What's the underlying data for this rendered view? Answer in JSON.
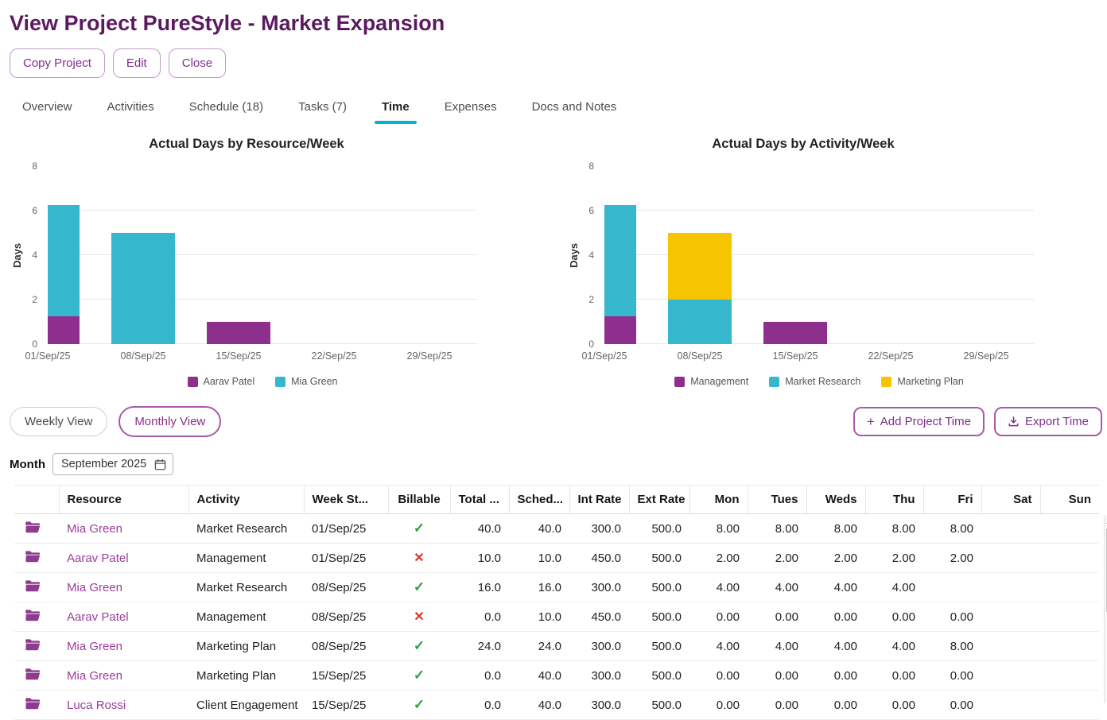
{
  "page_title": "View Project PureStyle - Market Expansion",
  "actions": {
    "copy": "Copy Project",
    "edit": "Edit",
    "close": "Close"
  },
  "tabs": [
    {
      "label": "Overview",
      "active": false
    },
    {
      "label": "Activities",
      "active": false
    },
    {
      "label": "Schedule (18)",
      "active": false
    },
    {
      "label": "Tasks (7)",
      "active": false
    },
    {
      "label": "Time",
      "active": true
    },
    {
      "label": "Expenses",
      "active": false
    },
    {
      "label": "Docs and Notes",
      "active": false
    }
  ],
  "chart_data": [
    {
      "type": "bar",
      "stacked": true,
      "title": "Actual Days by Resource/Week",
      "xlabel": "",
      "ylabel": "Days",
      "ylim": [
        0,
        8
      ],
      "yticks": [
        0,
        2,
        4,
        6,
        8
      ],
      "grid": true,
      "legend_position": "bottom",
      "categories": [
        "01/Sep/25",
        "08/Sep/25",
        "15/Sep/25",
        "22/Sep/25",
        "29/Sep/25"
      ],
      "series": [
        {
          "name": "Aarav Patel",
          "color": "#8e2f8e",
          "values": [
            1.25,
            0,
            1,
            0,
            0
          ]
        },
        {
          "name": "Mia Green",
          "color": "#35b8cd",
          "values": [
            5,
            5,
            0,
            0,
            0
          ]
        }
      ]
    },
    {
      "type": "bar",
      "stacked": true,
      "title": "Actual Days by Activity/Week",
      "xlabel": "",
      "ylabel": "Days",
      "ylim": [
        0,
        8
      ],
      "yticks": [
        0,
        2,
        4,
        6,
        8
      ],
      "grid": true,
      "legend_position": "bottom",
      "categories": [
        "01/Sep/25",
        "08/Sep/25",
        "15/Sep/25",
        "22/Sep/25",
        "29/Sep/25"
      ],
      "series": [
        {
          "name": "Management",
          "color": "#8e2f8e",
          "values": [
            1.25,
            0,
            1,
            0,
            0
          ]
        },
        {
          "name": "Market Research",
          "color": "#35b8cd",
          "values": [
            5,
            2,
            0,
            0,
            0
          ]
        },
        {
          "name": "Marketing Plan",
          "color": "#f6c500",
          "values": [
            0,
            3,
            0,
            0,
            0
          ]
        }
      ]
    }
  ],
  "view_controls": {
    "weekly_label": "Weekly View",
    "monthly_label": "Monthly View",
    "add_time_label": "Add Project Time",
    "export_label": "Export Time"
  },
  "icons": {
    "plus": "+"
  },
  "month_picker": {
    "label": "Month",
    "value": "September 2025"
  },
  "table": {
    "headers": [
      "",
      "Resource",
      "Activity",
      "Week St...",
      "Billable",
      "Total ...",
      "Sched...",
      "Int Rate",
      "Ext Rate",
      "Mon",
      "Tues",
      "Weds",
      "Thu",
      "Fri",
      "Sat",
      "Sun"
    ],
    "rows": [
      {
        "resource": "Mia Green",
        "activity": "Market Research",
        "week_start": "01/Sep/25",
        "billable": true,
        "values": [
          "40.0",
          "40.0",
          "300.0",
          "500.0",
          "8.00",
          "8.00",
          "8.00",
          "8.00",
          "8.00",
          "",
          ""
        ]
      },
      {
        "resource": "Aarav Patel",
        "activity": "Management",
        "week_start": "01/Sep/25",
        "billable": false,
        "values": [
          "10.0",
          "10.0",
          "450.0",
          "500.0",
          "2.00",
          "2.00",
          "2.00",
          "2.00",
          "2.00",
          "",
          ""
        ]
      },
      {
        "resource": "Mia Green",
        "activity": "Market Research",
        "week_start": "08/Sep/25",
        "billable": true,
        "values": [
          "16.0",
          "16.0",
          "300.0",
          "500.0",
          "4.00",
          "4.00",
          "4.00",
          "4.00",
          "",
          "",
          ""
        ]
      },
      {
        "resource": "Aarav Patel",
        "activity": "Management",
        "week_start": "08/Sep/25",
        "billable": false,
        "values": [
          "0.0",
          "10.0",
          "450.0",
          "500.0",
          "0.00",
          "0.00",
          "0.00",
          "0.00",
          "0.00",
          "",
          ""
        ]
      },
      {
        "resource": "Mia Green",
        "activity": "Marketing Plan",
        "week_start": "08/Sep/25",
        "billable": true,
        "values": [
          "24.0",
          "24.0",
          "300.0",
          "500.0",
          "4.00",
          "4.00",
          "4.00",
          "4.00",
          "8.00",
          "",
          ""
        ]
      },
      {
        "resource": "Mia Green",
        "activity": "Marketing Plan",
        "week_start": "15/Sep/25",
        "billable": true,
        "values": [
          "0.0",
          "40.0",
          "300.0",
          "500.0",
          "0.00",
          "0.00",
          "0.00",
          "0.00",
          "0.00",
          "",
          ""
        ]
      },
      {
        "resource": "Luca Rossi",
        "activity": "Client Engagement",
        "week_start": "15/Sep/25",
        "billable": true,
        "values": [
          "0.0",
          "40.0",
          "300.0",
          "500.0",
          "0.00",
          "0.00",
          "0.00",
          "0.00",
          "0.00",
          "",
          ""
        ]
      }
    ]
  },
  "colors": {
    "title_purple": "#5b1a60",
    "accent_purple": "#8e2f8e",
    "accent_teal": "#35b8cd",
    "accent_yellow": "#f6c500",
    "link_purple": "#9c3d9c",
    "tab_underline_teal": "#00b6c9",
    "billable_green": "#2f9e44",
    "nonbillable_red": "#d9342b"
  }
}
